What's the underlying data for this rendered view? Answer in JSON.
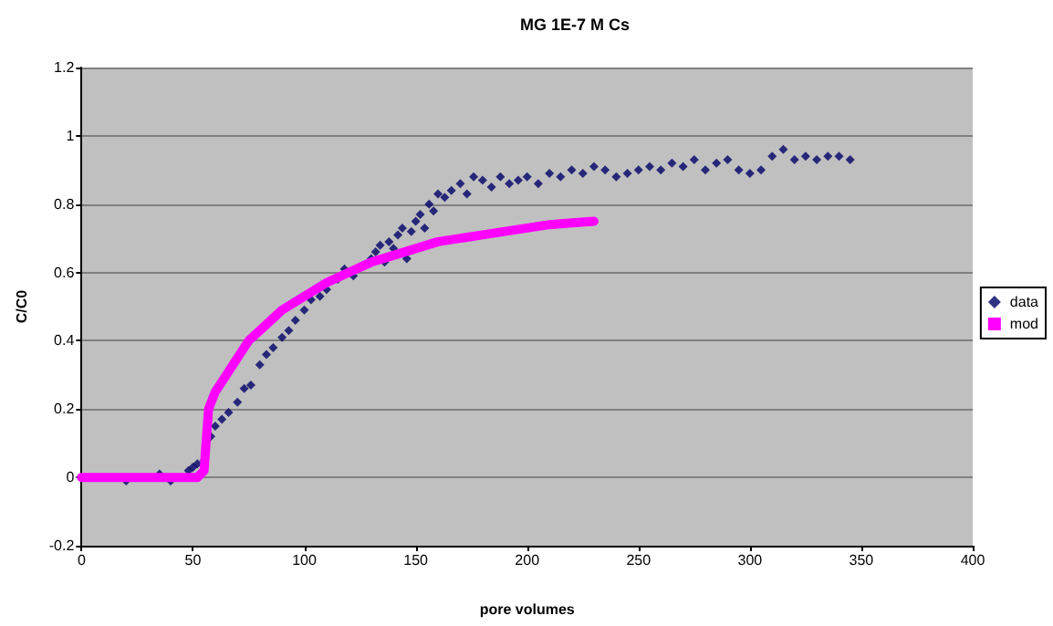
{
  "chart_data": {
    "type": "scatter",
    "title": "MG 1E-7 M Cs",
    "xlabel": "pore volumes",
    "ylabel": "C/C0",
    "xlim": [
      0,
      400
    ],
    "xticks": [
      0,
      50,
      100,
      150,
      200,
      250,
      300,
      350,
      400
    ],
    "ylim": [
      -0.2,
      1.2
    ],
    "yticks": [
      -0.2,
      0,
      0.2,
      0.4,
      0.6,
      0.8,
      1,
      1.2
    ],
    "grid": "y",
    "legend": "right",
    "series": [
      {
        "name": "data",
        "marker": "diamond",
        "color": "#000066",
        "x": [
          20,
          35,
          40,
          48,
          50,
          52,
          55,
          58,
          60,
          63,
          66,
          70,
          73,
          76,
          80,
          83,
          86,
          90,
          93,
          96,
          100,
          103,
          107,
          110,
          115,
          118,
          122,
          130,
          132,
          134,
          136,
          138,
          140,
          142,
          144,
          146,
          148,
          150,
          152,
          154,
          156,
          158,
          160,
          163,
          166,
          170,
          173,
          176,
          180,
          184,
          188,
          192,
          196,
          200,
          205,
          210,
          215,
          220,
          225,
          230,
          235,
          240,
          245,
          250,
          255,
          260,
          265,
          270,
          275,
          280,
          285,
          290,
          295,
          300,
          305,
          310,
          315,
          320,
          325,
          330,
          335,
          340,
          345
        ],
        "values": [
          -0.01,
          0.01,
          -0.01,
          0.02,
          0.03,
          0.04,
          0.05,
          0.12,
          0.15,
          0.17,
          0.19,
          0.22,
          0.26,
          0.27,
          0.33,
          0.36,
          0.38,
          0.41,
          0.43,
          0.46,
          0.49,
          0.52,
          0.53,
          0.55,
          0.58,
          0.61,
          0.59,
          0.64,
          0.66,
          0.68,
          0.63,
          0.69,
          0.67,
          0.71,
          0.73,
          0.64,
          0.72,
          0.75,
          0.77,
          0.73,
          0.8,
          0.78,
          0.83,
          0.82,
          0.84,
          0.86,
          0.83,
          0.88,
          0.87,
          0.85,
          0.88,
          0.86,
          0.87,
          0.88,
          0.86,
          0.89,
          0.88,
          0.9,
          0.89,
          0.91,
          0.9,
          0.88,
          0.89,
          0.9,
          0.91,
          0.9,
          0.92,
          0.91,
          0.93,
          0.9,
          0.92,
          0.93,
          0.9,
          0.89,
          0.9,
          0.94,
          0.96,
          0.93,
          0.94,
          0.93,
          0.94,
          0.94,
          0.93
        ]
      },
      {
        "name": "mod",
        "type": "line",
        "marker": "none",
        "color": "#ff00ff",
        "x": [
          0,
          20,
          40,
          52,
          55,
          57,
          60,
          65,
          70,
          75,
          80,
          90,
          100,
          110,
          120,
          130,
          140,
          150,
          160,
          170,
          180,
          190,
          200,
          210,
          220,
          230
        ],
        "values": [
          0,
          0,
          0,
          0,
          0.02,
          0.2,
          0.25,
          0.3,
          0.35,
          0.4,
          0.43,
          0.49,
          0.53,
          0.57,
          0.6,
          0.63,
          0.65,
          0.67,
          0.69,
          0.7,
          0.71,
          0.72,
          0.73,
          0.74,
          0.745,
          0.75
        ]
      }
    ]
  }
}
